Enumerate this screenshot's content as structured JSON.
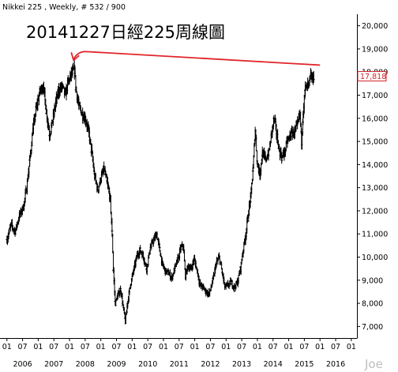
{
  "header": "Nikkei 225 , Weekly, # 532 / 900",
  "watermark": "Joe",
  "colors": {
    "line": "#000000",
    "annotation": "#e0252b",
    "price_box": "#d2232a",
    "axis": "#000000"
  },
  "chart_data": {
    "type": "ohlc",
    "title": "20141227日經225周線圖",
    "xlabel": "",
    "ylabel": "",
    "ylim": [
      6500,
      20500
    ],
    "xlim": [
      2005.3,
      2016.6
    ],
    "y_ticks": [
      7000,
      8000,
      9000,
      10000,
      11000,
      12000,
      13000,
      14000,
      15000,
      16000,
      17000,
      18000,
      19000,
      20000
    ],
    "y_tick_labels": [
      "7,000",
      "8,000",
      "9,000",
      "10,000",
      "11,000",
      "12,000",
      "13,000",
      "14,000",
      "15,000",
      "16,000",
      "17,000",
      "18,000",
      "19,000",
      "20,000"
    ],
    "x_ticks": [
      {
        "x": 2005.42,
        "label": "01"
      },
      {
        "x": 2005.92,
        "label": "07"
      },
      {
        "x": 2006.42,
        "label": "01"
      },
      {
        "x": 2006.92,
        "label": "07"
      },
      {
        "x": 2007.42,
        "label": "01"
      },
      {
        "x": 2007.92,
        "label": "07"
      },
      {
        "x": 2008.42,
        "label": "01"
      },
      {
        "x": 2008.92,
        "label": "07"
      },
      {
        "x": 2009.42,
        "label": "01"
      },
      {
        "x": 2009.92,
        "label": "07"
      },
      {
        "x": 2010.42,
        "label": "01"
      },
      {
        "x": 2010.92,
        "label": "07"
      },
      {
        "x": 2011.42,
        "label": "01"
      },
      {
        "x": 2011.92,
        "label": "07"
      },
      {
        "x": 2012.42,
        "label": "01"
      },
      {
        "x": 2012.92,
        "label": "07"
      },
      {
        "x": 2013.42,
        "label": "01"
      },
      {
        "x": 2013.92,
        "label": "07"
      },
      {
        "x": 2014.42,
        "label": "01"
      },
      {
        "x": 2014.92,
        "label": "07"
      },
      {
        "x": 2015.42,
        "label": "01"
      },
      {
        "x": 2015.92,
        "label": "07"
      },
      {
        "x": 2016.42,
        "label": "01"
      }
    ],
    "year_labels": [
      {
        "x": 2005.92,
        "label": "2006"
      },
      {
        "x": 2006.92,
        "label": "2007"
      },
      {
        "x": 2007.92,
        "label": "2008"
      },
      {
        "x": 2008.92,
        "label": "2009"
      },
      {
        "x": 2009.92,
        "label": "2010"
      },
      {
        "x": 2010.92,
        "label": "2011"
      },
      {
        "x": 2011.92,
        "label": "2012"
      },
      {
        "x": 2012.92,
        "label": "2013"
      },
      {
        "x": 2013.92,
        "label": "2014"
      },
      {
        "x": 2014.92,
        "label": "2015"
      },
      {
        "x": 2015.92,
        "label": "2016"
      }
    ],
    "last_price": 17818,
    "last_price_label": "17,818",
    "annotation_arrow": {
      "from": {
        "x": 2015.42,
        "y": 18300
      },
      "to": {
        "x": 2007.55,
        "y": 18750
      }
    },
    "series": [
      {
        "bar_spread": 0.65,
        "points": [
          [
            2005.42,
            10750
          ],
          [
            2005.55,
            11400
          ],
          [
            2005.68,
            11100
          ],
          [
            2005.82,
            11800
          ],
          [
            2005.95,
            12200
          ],
          [
            2006.05,
            13000
          ],
          [
            2006.15,
            14200
          ],
          [
            2006.25,
            15500
          ],
          [
            2006.35,
            16400
          ],
          [
            2006.48,
            17200
          ],
          [
            2006.58,
            17400
          ],
          [
            2006.68,
            16300
          ],
          [
            2006.78,
            15300
          ],
          [
            2006.88,
            15900
          ],
          [
            2006.98,
            16700
          ],
          [
            2007.08,
            17200
          ],
          [
            2007.18,
            17400
          ],
          [
            2007.28,
            17000
          ],
          [
            2007.38,
            17600
          ],
          [
            2007.48,
            17900
          ],
          [
            2007.58,
            18100
          ],
          [
            2007.62,
            17300
          ],
          [
            2007.72,
            16500
          ],
          [
            2007.82,
            16200
          ],
          [
            2007.92,
            16000
          ],
          [
            2008.02,
            15500
          ],
          [
            2008.12,
            14600
          ],
          [
            2008.22,
            13500
          ],
          [
            2008.32,
            12900
          ],
          [
            2008.42,
            13400
          ],
          [
            2008.52,
            13800
          ],
          [
            2008.62,
            13200
          ],
          [
            2008.72,
            12500
          ],
          [
            2008.78,
            11000
          ],
          [
            2008.82,
            9400
          ],
          [
            2008.88,
            8000
          ],
          [
            2008.95,
            8300
          ],
          [
            2009.05,
            8600
          ],
          [
            2009.15,
            7700
          ],
          [
            2009.2,
            7200
          ],
          [
            2009.28,
            8100
          ],
          [
            2009.38,
            8900
          ],
          [
            2009.48,
            9500
          ],
          [
            2009.58,
            10100
          ],
          [
            2009.68,
            10300
          ],
          [
            2009.78,
            10000
          ],
          [
            2009.88,
            9500
          ],
          [
            2010.0,
            10400
          ],
          [
            2010.1,
            10700
          ],
          [
            2010.2,
            11000
          ],
          [
            2010.3,
            10300
          ],
          [
            2010.38,
            9700
          ],
          [
            2010.48,
            9400
          ],
          [
            2010.58,
            9300
          ],
          [
            2010.68,
            9100
          ],
          [
            2010.78,
            9500
          ],
          [
            2010.88,
            9900
          ],
          [
            2010.98,
            10400
          ],
          [
            2011.05,
            10500
          ],
          [
            2011.12,
            9200
          ],
          [
            2011.2,
            9600
          ],
          [
            2011.3,
            9500
          ],
          [
            2011.4,
            9900
          ],
          [
            2011.5,
            9400
          ],
          [
            2011.58,
            8800
          ],
          [
            2011.68,
            8700
          ],
          [
            2011.78,
            8500
          ],
          [
            2011.88,
            8400
          ],
          [
            2012.0,
            9000
          ],
          [
            2012.1,
            9700
          ],
          [
            2012.2,
            10000
          ],
          [
            2012.3,
            9300
          ],
          [
            2012.38,
            8700
          ],
          [
            2012.48,
            8800
          ],
          [
            2012.58,
            8900
          ],
          [
            2012.68,
            8700
          ],
          [
            2012.78,
            8900
          ],
          [
            2012.88,
            9500
          ],
          [
            2012.95,
            10200
          ],
          [
            2013.05,
            11000
          ],
          [
            2013.12,
            11800
          ],
          [
            2013.2,
            12500
          ],
          [
            2013.28,
            13800
          ],
          [
            2013.35,
            15500
          ],
          [
            2013.42,
            14000
          ],
          [
            2013.5,
            13600
          ],
          [
            2013.58,
            14500
          ],
          [
            2013.68,
            14200
          ],
          [
            2013.78,
            14500
          ],
          [
            2013.88,
            15400
          ],
          [
            2013.95,
            16000
          ],
          [
            2014.05,
            15200
          ],
          [
            2014.12,
            14600
          ],
          [
            2014.2,
            14300
          ],
          [
            2014.28,
            14500
          ],
          [
            2014.38,
            15000
          ],
          [
            2014.48,
            15300
          ],
          [
            2014.58,
            15400
          ],
          [
            2014.68,
            15600
          ],
          [
            2014.78,
            16200
          ],
          [
            2014.83,
            15000
          ],
          [
            2014.88,
            16300
          ],
          [
            2014.95,
            17300
          ],
          [
            2015.05,
            17400
          ],
          [
            2015.12,
            17800
          ],
          [
            2015.18,
            17700
          ],
          [
            2015.22,
            17818
          ]
        ]
      }
    ]
  }
}
